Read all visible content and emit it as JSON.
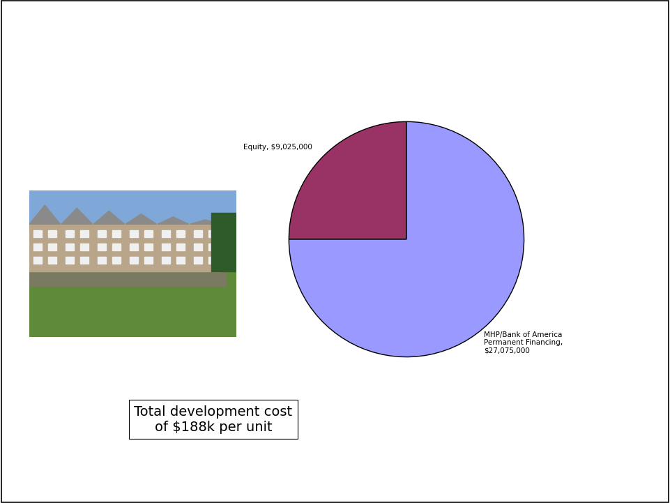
{
  "chart_data": {
    "type": "pie",
    "categories": [
      "Equity, $9,025,000",
      "MHP/Bank of America Permanent Financing, $27,075,000"
    ],
    "values": [
      9025000,
      27075000
    ],
    "colors": [
      "#993366",
      "#9999ff"
    ],
    "annotation": "Total development cost of $188k per unit"
  }
}
